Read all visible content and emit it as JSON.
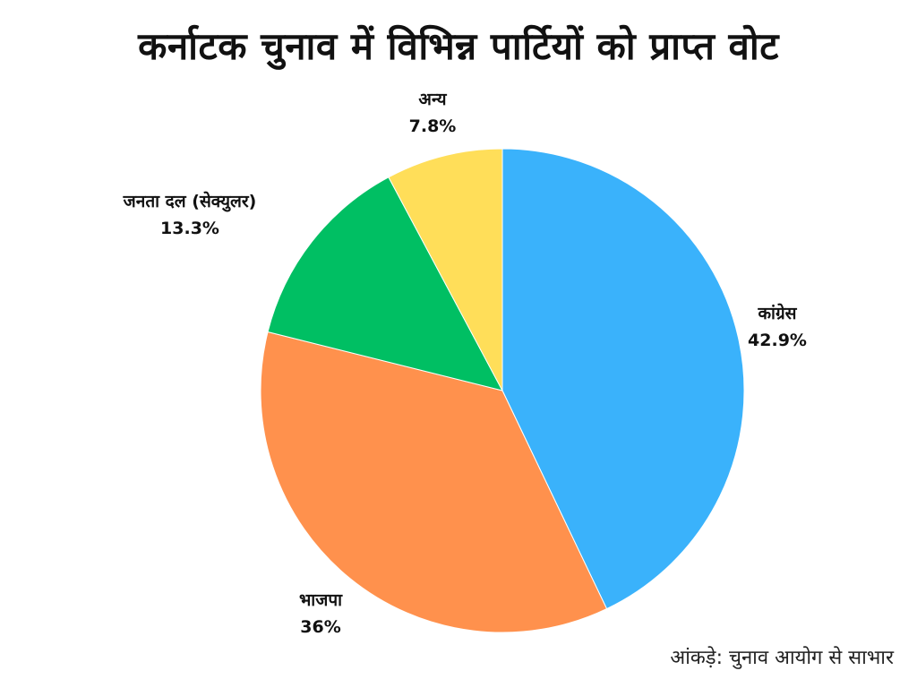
{
  "chart_data": {
    "type": "pie",
    "title": "कर्नाटक चुनाव में विभिन्न पार्टियों को प्राप्त वोट",
    "slices": [
      {
        "label": "कांग्रेस",
        "value": 42.9,
        "value_label": "42.9%",
        "color": "#3AB2FB"
      },
      {
        "label": "भाजपा",
        "value": 36,
        "value_label": "36%",
        "color": "#FF914D"
      },
      {
        "label": "जनता दल (सेक्युलर)",
        "value": 13.3,
        "value_label": "13.3%",
        "color": "#00BF63"
      },
      {
        "label": "अन्य",
        "value": 7.8,
        "value_label": "7.8%",
        "color": "#FFDE59"
      }
    ],
    "start": "12 o'clock",
    "direction": "clockwise",
    "legend": "none"
  },
  "source_note": "आंकड़े: चुनाव आयोग से साभार"
}
